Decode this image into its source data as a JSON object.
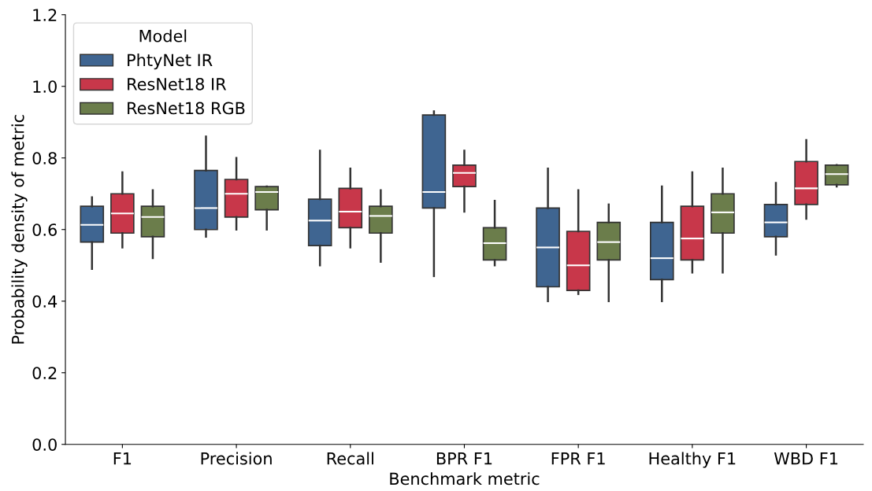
{
  "chart_data": {
    "type": "box",
    "xlabel": "Benchmark metric",
    "ylabel": "Probability density of metric",
    "legend_title": "Model",
    "legend": "top left",
    "grid": false,
    "categories": [
      "F1",
      "Precision",
      "Recall",
      "BPR F1",
      "FPR F1",
      "Healthy F1",
      "WBD F1"
    ],
    "ylim": [
      0.0,
      1.2
    ],
    "yticks": [
      {
        "value": 0.0,
        "label": "0.0"
      },
      {
        "value": 0.2,
        "label": "0.2"
      },
      {
        "value": 0.4,
        "label": "0.4"
      },
      {
        "value": 0.6,
        "label": "0.6"
      },
      {
        "value": 0.8,
        "label": "0.8"
      },
      {
        "value": 1.0,
        "label": "1.0"
      },
      {
        "value": 1.2,
        "label": "1.2"
      }
    ],
    "series": [
      {
        "name": "PhtyNet IR",
        "color": "#3f6591",
        "boxes": [
          {
            "low": 0.49,
            "q1": 0.565,
            "median": 0.613,
            "q3": 0.665,
            "high": 0.69
          },
          {
            "low": 0.58,
            "q1": 0.6,
            "median": 0.66,
            "q3": 0.765,
            "high": 0.86
          },
          {
            "low": 0.5,
            "q1": 0.555,
            "median": 0.625,
            "q3": 0.685,
            "high": 0.82
          },
          {
            "low": 0.47,
            "q1": 0.66,
            "median": 0.705,
            "q3": 0.92,
            "high": 0.93
          },
          {
            "low": 0.4,
            "q1": 0.44,
            "median": 0.55,
            "q3": 0.66,
            "high": 0.77
          },
          {
            "low": 0.4,
            "q1": 0.46,
            "median": 0.52,
            "q3": 0.62,
            "high": 0.72
          },
          {
            "low": 0.53,
            "q1": 0.58,
            "median": 0.62,
            "q3": 0.67,
            "high": 0.73
          }
        ]
      },
      {
        "name": "ResNet18 IR",
        "color": "#c8374a",
        "boxes": [
          {
            "low": 0.55,
            "q1": 0.59,
            "median": 0.645,
            "q3": 0.7,
            "high": 0.76
          },
          {
            "low": 0.6,
            "q1": 0.635,
            "median": 0.7,
            "q3": 0.74,
            "high": 0.8
          },
          {
            "low": 0.55,
            "q1": 0.605,
            "median": 0.65,
            "q3": 0.715,
            "high": 0.77
          },
          {
            "low": 0.65,
            "q1": 0.72,
            "median": 0.758,
            "q3": 0.78,
            "high": 0.82
          },
          {
            "low": 0.42,
            "q1": 0.43,
            "median": 0.5,
            "q3": 0.595,
            "high": 0.71
          },
          {
            "low": 0.48,
            "q1": 0.515,
            "median": 0.575,
            "q3": 0.665,
            "high": 0.76
          },
          {
            "low": 0.63,
            "q1": 0.67,
            "median": 0.715,
            "q3": 0.79,
            "high": 0.85
          }
        ]
      },
      {
        "name": "ResNet18 RGB",
        "color": "#6b7d4b",
        "boxes": [
          {
            "low": 0.52,
            "q1": 0.58,
            "median": 0.635,
            "q3": 0.665,
            "high": 0.71
          },
          {
            "low": 0.6,
            "q1": 0.655,
            "median": 0.705,
            "q3": 0.72,
            "high": 0.72
          },
          {
            "low": 0.51,
            "q1": 0.59,
            "median": 0.638,
            "q3": 0.665,
            "high": 0.71
          },
          {
            "low": 0.5,
            "q1": 0.515,
            "median": 0.562,
            "q3": 0.605,
            "high": 0.68
          },
          {
            "low": 0.4,
            "q1": 0.515,
            "median": 0.565,
            "q3": 0.62,
            "high": 0.67
          },
          {
            "low": 0.48,
            "q1": 0.59,
            "median": 0.648,
            "q3": 0.7,
            "high": 0.77
          },
          {
            "low": 0.72,
            "q1": 0.725,
            "median": 0.755,
            "q3": 0.78,
            "high": 0.78
          }
        ]
      }
    ]
  }
}
